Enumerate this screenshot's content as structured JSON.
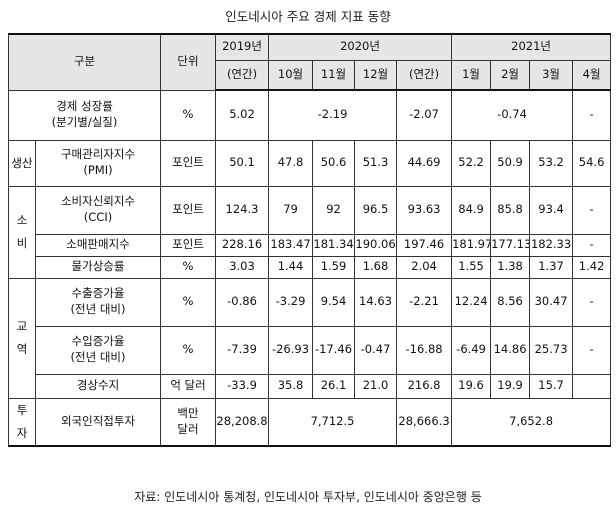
{
  "title": "인도네시아 주요 경제 지표 동향",
  "header": {
    "category": "구분",
    "unit": "단위",
    "y2019": "2019년",
    "y2020": "2020년",
    "y2021": "2021년",
    "annual_2019": "(연간)",
    "oct": "10월",
    "nov": "11월",
    "dec": "12월",
    "annual_2020": "(연간)",
    "jan": "1월",
    "feb": "2월",
    "mar": "3월",
    "apr": "4월"
  },
  "groups": {
    "production": "생산",
    "consumption": "소비",
    "trade": "교역",
    "investment": "투자"
  },
  "rows": {
    "gdp": {
      "label1": "경제 성장률",
      "label2": "(분기별/실질)",
      "unit": "%",
      "y2019": "5.02",
      "q4_2020": "-2.19",
      "y2020": "-2.07",
      "q1_2021": "-0.74",
      "apr": "-"
    },
    "pmi": {
      "label1": "구매관리자지수",
      "label2": "(PMI)",
      "unit": "포인트",
      "y2019": "50.1",
      "oct": "47.8",
      "nov": "50.6",
      "dec": "51.3",
      "y2020": "44.69",
      "jan": "52.2",
      "feb": "50.9",
      "mar": "53.2",
      "apr": "54.6"
    },
    "cci": {
      "label1": "소비자신뢰지수",
      "label2": "(CCI)",
      "unit": "포인트",
      "y2019": "124.3",
      "oct": "79",
      "nov": "92",
      "dec": "96.5",
      "y2020": "93.63",
      "jan": "84.9",
      "feb": "85.8",
      "mar": "93.4",
      "apr": "-"
    },
    "retail": {
      "label": "소매판매지수",
      "unit": "포인트",
      "y2019": "228.16",
      "oct": "183.47",
      "nov": "181.34",
      "dec": "190.06",
      "y2020": "197.46",
      "jan": "181.97",
      "feb": "177.13",
      "mar": "182.33",
      "apr": "-"
    },
    "inflation": {
      "label": "물가상승률",
      "unit": "%",
      "y2019": "3.03",
      "oct": "1.44",
      "nov": "1.59",
      "dec": "1.68",
      "y2020": "2.04",
      "jan": "1.55",
      "feb": "1.38",
      "mar": "1.37",
      "apr": "1.42"
    },
    "exports": {
      "label1": "수출증가율",
      "label2": "(전년 대비)",
      "unit": "%",
      "y2019": "-0.86",
      "oct": "-3.29",
      "nov": "9.54",
      "dec": "14.63",
      "y2020": "-2.21",
      "jan": "12.24",
      "feb": "8.56",
      "mar": "30.47",
      "apr": "-"
    },
    "imports": {
      "label1": "수입증가율",
      "label2": "(전년 대비)",
      "unit": "%",
      "y2019": "-7.39",
      "oct": "-26.93",
      "nov": "-17.46",
      "dec": "-0.47",
      "y2020": "-16.88",
      "jan": "-6.49",
      "feb": "14.86",
      "mar": "25.73",
      "apr": "-"
    },
    "balance": {
      "label": "경상수지",
      "unit": "억 달러",
      "y2019": "-33.9",
      "oct": "35.8",
      "nov": "26.1",
      "dec": "21.0",
      "y2020": "216.8",
      "jan": "19.6",
      "feb": "19.9",
      "mar": "15.7",
      "apr": ""
    },
    "fdi": {
      "label": "외국인직접투자",
      "unit1": "백만",
      "unit2": "달러",
      "y2019": "28,208.8",
      "q4_2020": "7,712.5",
      "y2020": "28,666.3",
      "q1_2021": "7,652.8"
    }
  },
  "source": "자료: 인도네시아 통계청, 인도네시아 투자부, 인도네시아 중앙은행 등"
}
